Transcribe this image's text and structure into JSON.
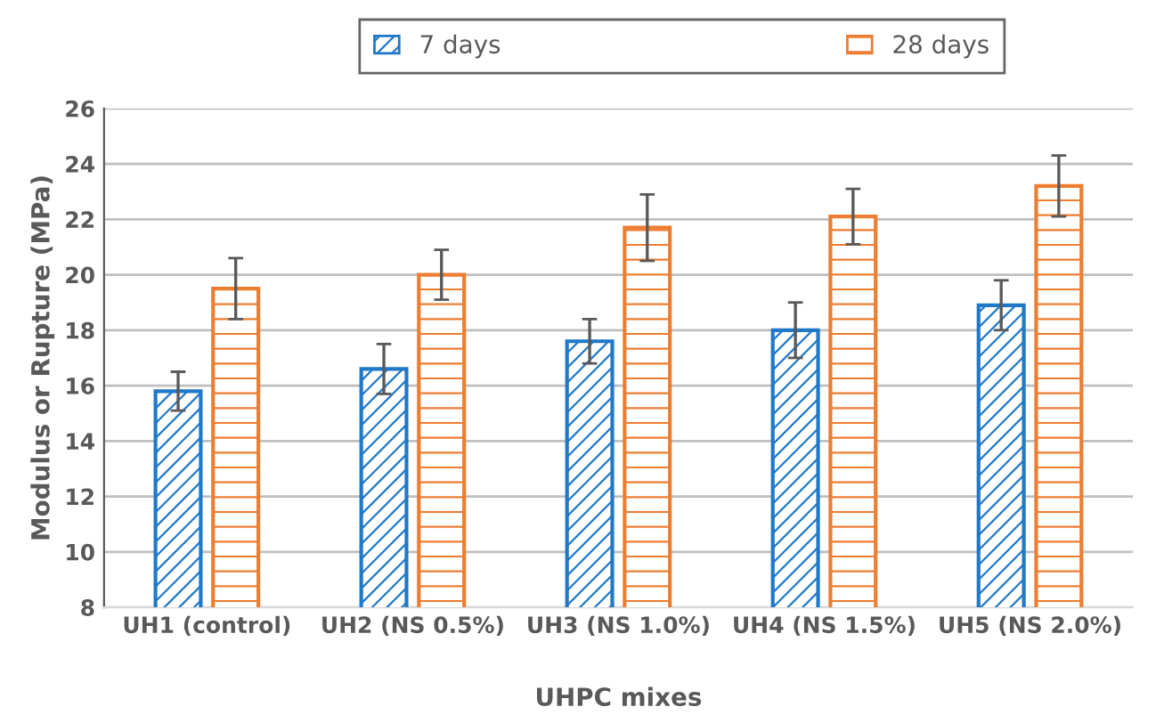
{
  "chart_data": {
    "type": "bar",
    "xlabel": "UHPC mixes",
    "ylabel": "Modulus or Rupture (MPa)",
    "categories": [
      "UH1 (control)",
      "UH2 (NS 0.5%)",
      "UH3 (NS 1.0%)",
      "UH4 (NS 1.5%)",
      "UH5 (NS 2.0%)"
    ],
    "series": [
      {
        "name": "7 days",
        "color": "#1f78c8",
        "values": [
          15.8,
          16.6,
          17.6,
          18.0,
          18.9
        ],
        "errors": [
          0.7,
          0.9,
          0.8,
          1.0,
          0.9
        ]
      },
      {
        "name": "28 days",
        "color": "#ed7d31",
        "values": [
          19.5,
          20.0,
          21.7,
          22.1,
          23.2
        ],
        "errors": [
          1.1,
          0.9,
          1.2,
          1.0,
          1.1
        ]
      }
    ],
    "ylim": [
      8,
      26
    ],
    "yticks": [
      8,
      10,
      12,
      14,
      16,
      18,
      20,
      22,
      24,
      26
    ],
    "grid": "y",
    "legend": "top"
  }
}
